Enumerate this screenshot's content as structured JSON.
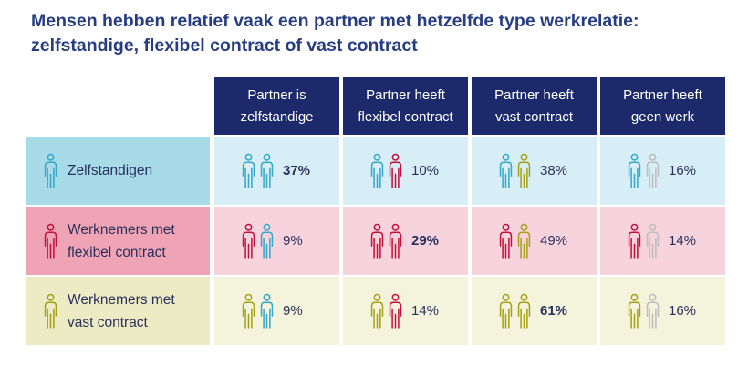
{
  "title_line1": "Mensen hebben relatief vaak een partner met hetzelfde type werkrelatie:",
  "title_line2": "zelfstandige, flexibel contract of vast contract",
  "colors": {
    "zelfstandige": "#34a8c8",
    "flexibel": "#c4103c",
    "vast": "#a6a014",
    "geen_werk": "#bdbdbd",
    "header_bg": "#1c2a6b"
  },
  "chart_data": {
    "type": "table",
    "columns": [
      {
        "line1": "Partner is",
        "line2": "zelfstandige",
        "partner_type": "zelfstandige"
      },
      {
        "line1": "Partner heeft",
        "line2": "flexibel contract",
        "partner_type": "flexibel"
      },
      {
        "line1": "Partner heeft",
        "line2": "vast contract",
        "partner_type": "vast"
      },
      {
        "line1": "Partner heeft",
        "line2": "geen werk",
        "partner_type": "geen_werk"
      }
    ],
    "rows": [
      {
        "line1": "Zelfstandigen",
        "line2": "",
        "type": "zelfstandige",
        "values": [
          "37%",
          "10%",
          "38%",
          "16%"
        ],
        "bold_index": 0
      },
      {
        "line1": "Werknemers met",
        "line2": "flexibel contract",
        "type": "flexibel",
        "values": [
          "9%",
          "29%",
          "49%",
          "14%"
        ],
        "bold_index": 1
      },
      {
        "line1": "Werknemers met",
        "line2": "vast contract",
        "type": "vast",
        "values": [
          "9%",
          "14%",
          "61%",
          "16%"
        ],
        "bold_index": 2
      }
    ]
  }
}
